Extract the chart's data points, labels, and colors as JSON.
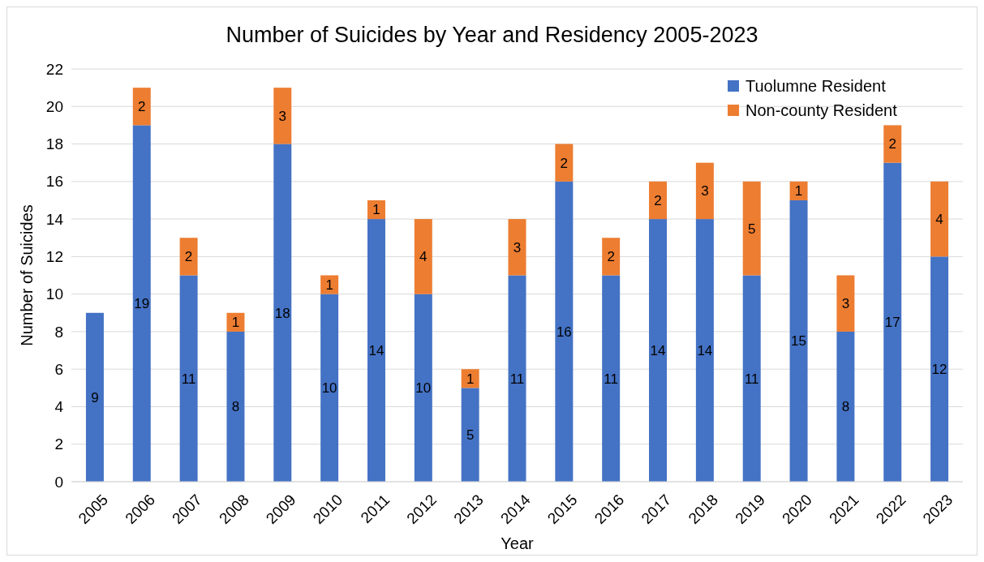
{
  "chart_data": {
    "type": "bar",
    "title": "Number of Suicides by Year and Residency 2005-2023",
    "xlabel": "Year",
    "ylabel": "Number of Suicides",
    "categories": [
      "2005",
      "2006",
      "2007",
      "2008",
      "2009",
      "2010",
      "2011",
      "2012",
      "2013",
      "2014",
      "2015",
      "2016",
      "2017",
      "2018",
      "2019",
      "2020",
      "2021",
      "2022",
      "2023"
    ],
    "stacked": true,
    "series": [
      {
        "name": "Tuolumne Resident",
        "color": "#4472c4",
        "values": [
          9,
          19,
          11,
          8,
          18,
          10,
          14,
          10,
          5,
          11,
          16,
          11,
          14,
          14,
          11,
          15,
          8,
          17,
          12
        ]
      },
      {
        "name": "Non-county Resident",
        "color": "#ed7d31",
        "values": [
          null,
          2,
          2,
          1,
          3,
          1,
          1,
          4,
          1,
          3,
          2,
          2,
          2,
          3,
          5,
          1,
          3,
          2,
          4
        ]
      }
    ],
    "ylim": [
      0,
      22
    ],
    "yticks": [
      0,
      2,
      4,
      6,
      8,
      10,
      12,
      14,
      16,
      18,
      20,
      22
    ],
    "grid": "y",
    "legend": "top right",
    "data_labels": true
  }
}
